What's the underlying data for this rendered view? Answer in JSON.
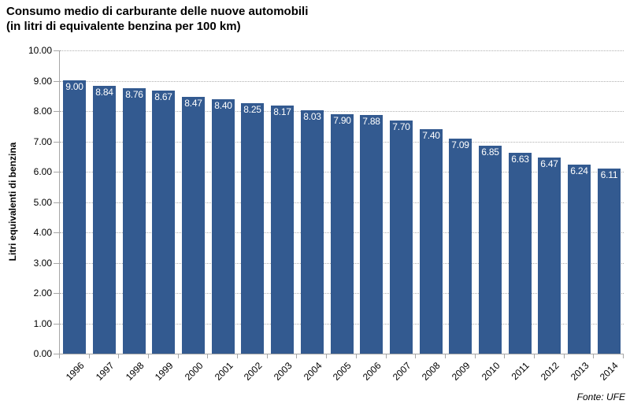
{
  "header": {
    "title_line1": "Consumo medio di carburante delle nuove automobili",
    "title_line2": "(in litri di equivalente benzina per 100 km)"
  },
  "source_note": "Fonte: UFE",
  "colors": {
    "bar": "#335A90",
    "value_label": "#FFFFFF",
    "gridline": "#B0B0B0",
    "axis": "#A6A6A6",
    "text": "#000000"
  },
  "chart_data": {
    "type": "bar",
    "title": "Consumo medio di carburante delle nuove automobili (in litri di equivalente benzina per 100 km)",
    "categories": [
      "1996",
      "1997",
      "1998",
      "1999",
      "2000",
      "2001",
      "2002",
      "2003",
      "2004",
      "2005",
      "2006",
      "2007",
      "2008",
      "2009",
      "2010",
      "2011",
      "2012",
      "2013",
      "2014"
    ],
    "values": [
      9.0,
      8.84,
      8.76,
      8.67,
      8.47,
      8.4,
      8.25,
      8.17,
      8.03,
      7.9,
      7.88,
      7.7,
      7.4,
      7.09,
      6.85,
      6.63,
      6.47,
      6.24,
      6.11
    ],
    "xlabel": "",
    "ylabel": "Litri equivalenti di benzina",
    "ylim": [
      0,
      10
    ],
    "ytick_step": 1,
    "ytick_decimals": 2,
    "value_label_decimals": 2,
    "grid": "horizontal-dotted",
    "legend": "none",
    "value_labels": "inside-top",
    "source": "Fonte: UFE"
  }
}
